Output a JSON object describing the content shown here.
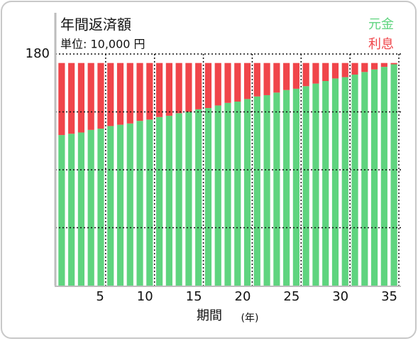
{
  "chart_data": {
    "type": "stacked_bar",
    "title": "年間返済額",
    "subtitle": "単位: 10,000 円",
    "xlabel": "期間",
    "xunit": "(年)",
    "categories": [
      null,
      null,
      null,
      null,
      5,
      null,
      null,
      null,
      null,
      10,
      null,
      null,
      null,
      null,
      15,
      null,
      null,
      null,
      null,
      20,
      null,
      null,
      null,
      null,
      25,
      null,
      null,
      null,
      null,
      30,
      null,
      null,
      null,
      null,
      35
    ],
    "series": [
      {
        "name": "元金",
        "color": "#5fd47f",
        "values": [
          117,
          118,
          119,
          121,
          122,
          124,
          125,
          126,
          128,
          129,
          131,
          132,
          134,
          135,
          137,
          138,
          140,
          142,
          143,
          145,
          147,
          148,
          150,
          152,
          153,
          155,
          157,
          159,
          161,
          162,
          164,
          166,
          168,
          170,
          172
        ]
      },
      {
        "name": "利息",
        "color": "#f0454a",
        "values": [
          56,
          55,
          54,
          52,
          51,
          49,
          48,
          47,
          45,
          44,
          42,
          41,
          39,
          38,
          36,
          35,
          33,
          31,
          30,
          28,
          26,
          25,
          23,
          21,
          20,
          18,
          16,
          14,
          12,
          11,
          9,
          7,
          5,
          3,
          1
        ]
      }
    ],
    "ylim": [
      0,
      180
    ],
    "yticks": [
      180
    ],
    "ygrid": [
      45,
      90,
      135,
      180
    ],
    "grid": true,
    "legend": "top-right"
  }
}
